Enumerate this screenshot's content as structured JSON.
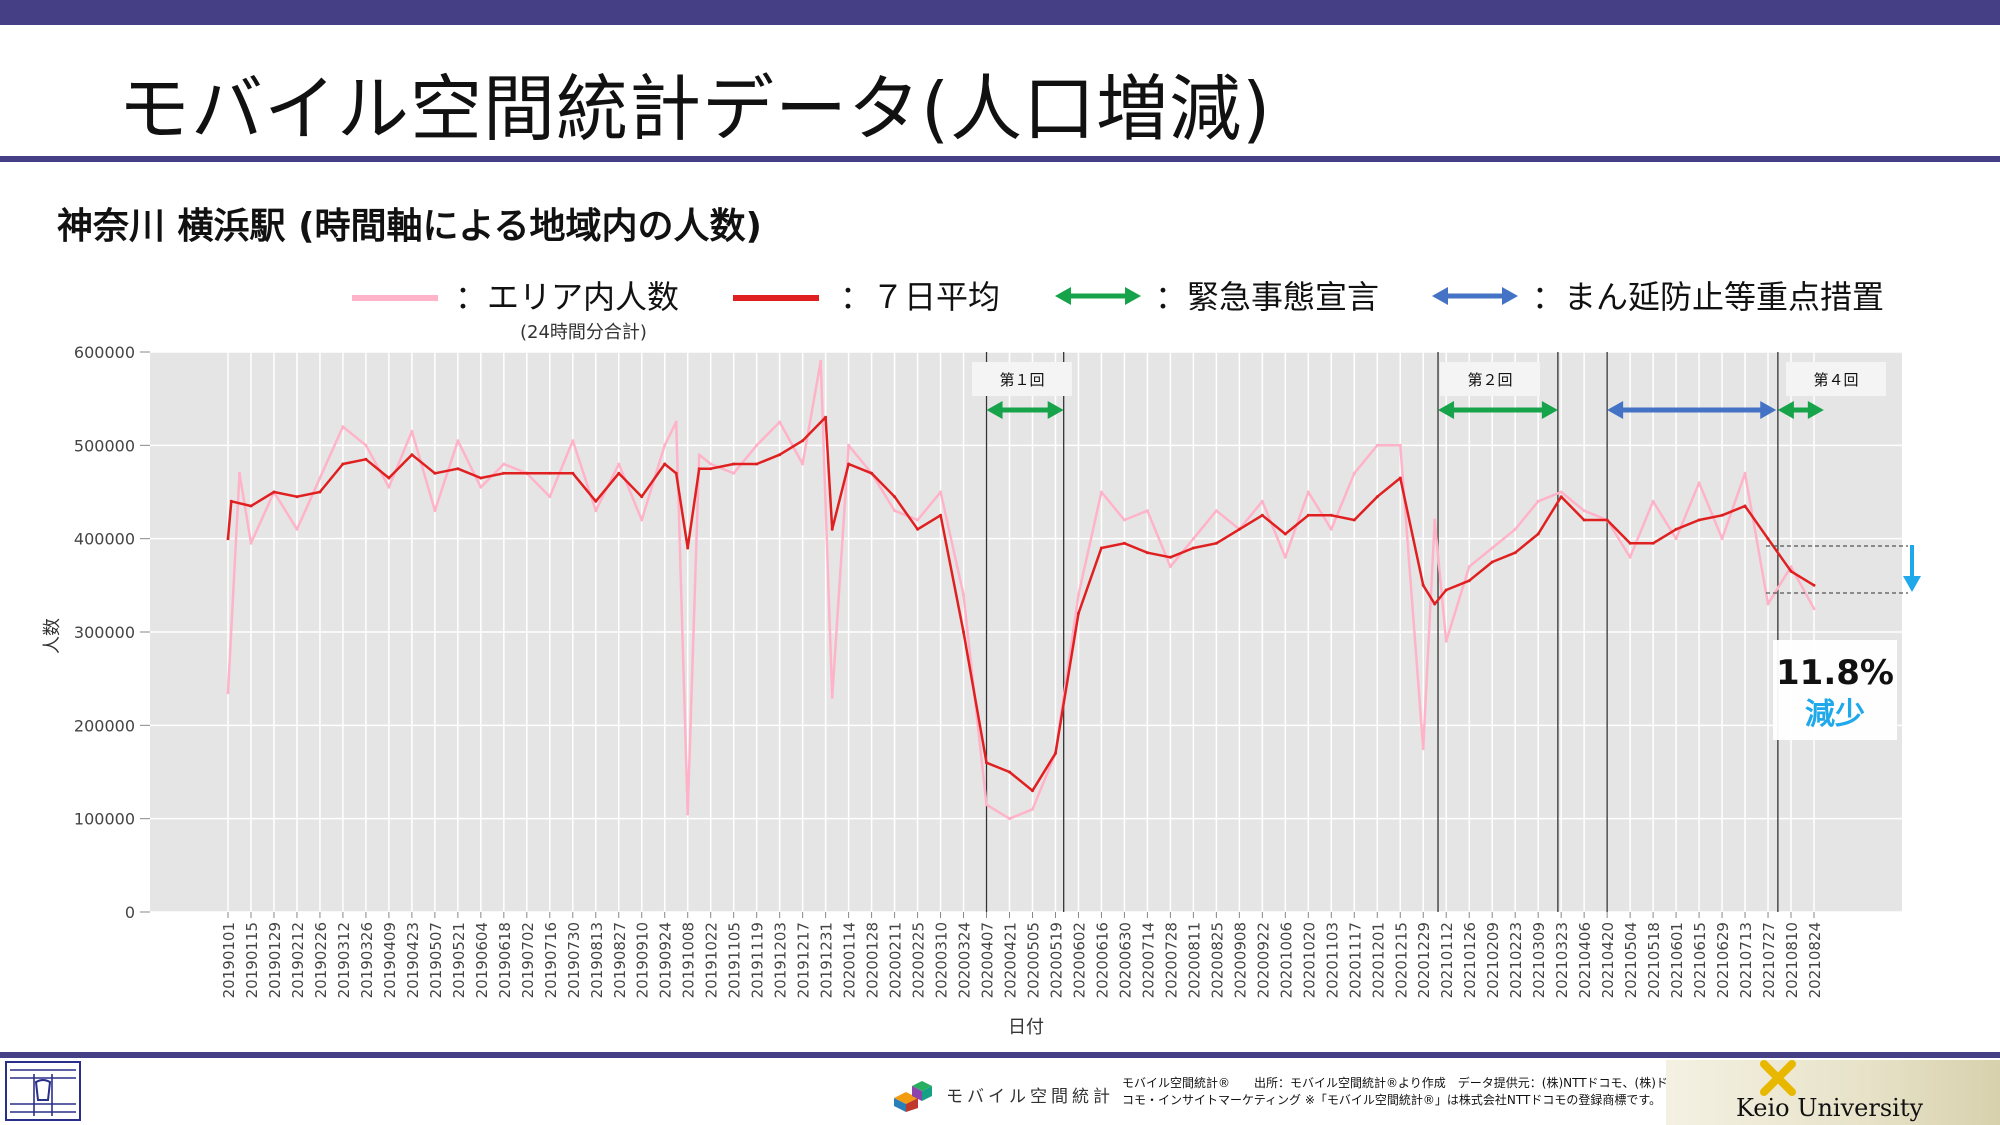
{
  "slide": {
    "title": "モバイル空間統計データ(人口増減)",
    "subtitle": "神奈川 横浜駅 (時間軸による地域内の人数)"
  },
  "legend": {
    "area": "：エリア内人数",
    "area_note": "(24時間分合計)",
    "avg7": "：７日平均",
    "emergency": "：緊急事態宣言",
    "priority": "：まん延防止等重点措置"
  },
  "colors": {
    "accent_bar": "#453f86",
    "area_line": "#ffb3c8",
    "avg_line": "#e02020",
    "emergency_arrow": "#16a34a",
    "priority_arrow": "#4472c4",
    "decrease_arrow": "#1fa8ea",
    "plot_bg": "#e5e5e5"
  },
  "annotations": {
    "round1": "第１回",
    "round2": "第２回",
    "round4": "第４回",
    "decrease_pct": "11.8%",
    "decrease_label": "減少"
  },
  "footer": {
    "brand": "モバイル空間統計",
    "line1": "モバイル空間統計®　　出所：モバイル空間統計®より作成　データ提供元：(株)NTTドコモ、(株)ド",
    "line2": "コモ・インサイトマーケティング ※「モバイル空間統計®」は株式会社NTTドコモの登録商標です。",
    "university": "Keio University"
  },
  "chart_data": {
    "type": "line",
    "xlabel": "日付",
    "ylabel": "人数",
    "ylim": [
      0,
      600000
    ],
    "yticks": [
      "0",
      "100000",
      "200000",
      "300000",
      "400000",
      "500000",
      "600000"
    ],
    "xticks": [
      "20190101",
      "20190115",
      "20190129",
      "20190212",
      "20190226",
      "20190312",
      "20190326",
      "20190409",
      "20190423",
      "20190507",
      "20190521",
      "20190604",
      "20190618",
      "20190702",
      "20190716",
      "20190730",
      "20190813",
      "20190827",
      "20190910",
      "20190924",
      "20191008",
      "20191022",
      "20191105",
      "20191119",
      "20191203",
      "20191217",
      "20191231",
      "20200114",
      "20200128",
      "20200211",
      "20200225",
      "20200310",
      "20200324",
      "20200407",
      "20200421",
      "20200505",
      "20200519",
      "20200602",
      "20200616",
      "20200630",
      "20200714",
      "20200728",
      "20200811",
      "20200825",
      "20200908",
      "20200922",
      "20201006",
      "20201020",
      "20201103",
      "20201117",
      "20201201",
      "20201215",
      "20201229",
      "20210112",
      "20210126",
      "20210209",
      "20210223",
      "20210309",
      "20210323",
      "20210406",
      "20210420",
      "20210504",
      "20210518",
      "20210601",
      "20210615",
      "20210629",
      "20210713",
      "20210727",
      "20210810",
      "20210824"
    ],
    "grid": true,
    "series": [
      {
        "name": "エリア内人数",
        "x": [
          "20190101",
          "20190108",
          "20190115",
          "20190129",
          "20190212",
          "20190226",
          "20190312",
          "20190326",
          "20190409",
          "20190423",
          "20190507",
          "20190521",
          "20190604",
          "20190618",
          "20190702",
          "20190716",
          "20190730",
          "20190813",
          "20190827",
          "20190910",
          "20190924",
          "20191001",
          "20191008",
          "20191015",
          "20191022",
          "20191105",
          "20191119",
          "20191203",
          "20191217",
          "20191228",
          "20200104",
          "20200114",
          "20200128",
          "20200211",
          "20200225",
          "20200310",
          "20200324",
          "20200407",
          "20200421",
          "20200505",
          "20200519",
          "20200602",
          "20200616",
          "20200630",
          "20200714",
          "20200728",
          "20200811",
          "20200825",
          "20200908",
          "20200922",
          "20201006",
          "20201020",
          "20201103",
          "20201117",
          "20201201",
          "20201215",
          "20201229",
          "20210105",
          "20210112",
          "20210126",
          "20210209",
          "20210223",
          "20210309",
          "20210323",
          "20210406",
          "20210420",
          "20210504",
          "20210518",
          "20210601",
          "20210615",
          "20210629",
          "20210713",
          "20210727",
          "20210810",
          "20210824"
        ],
        "y": [
          235000,
          470000,
          395000,
          450000,
          410000,
          465000,
          520000,
          500000,
          455000,
          515000,
          430000,
          505000,
          455000,
          480000,
          470000,
          445000,
          505000,
          430000,
          480000,
          420000,
          500000,
          525000,
          105000,
          490000,
          480000,
          470000,
          500000,
          525000,
          480000,
          590000,
          230000,
          500000,
          470000,
          430000,
          420000,
          450000,
          340000,
          115000,
          100000,
          110000,
          170000,
          340000,
          450000,
          420000,
          430000,
          370000,
          400000,
          430000,
          410000,
          440000,
          380000,
          450000,
          410000,
          470000,
          500000,
          500000,
          175000,
          420000,
          290000,
          370000,
          390000,
          410000,
          440000,
          450000,
          430000,
          420000,
          380000,
          440000,
          400000,
          460000,
          400000,
          470000,
          330000,
          370000,
          325000
        ]
      },
      {
        "name": "７日平均",
        "x": [
          "20190101",
          "20190103",
          "20190115",
          "20190129",
          "20190212",
          "20190226",
          "20190312",
          "20190326",
          "20190409",
          "20190423",
          "20190507",
          "20190521",
          "20190604",
          "20190618",
          "20190702",
          "20190716",
          "20190730",
          "20190813",
          "20190827",
          "20190910",
          "20190924",
          "20191001",
          "20191008",
          "20191015",
          "20191022",
          "20191105",
          "20191119",
          "20191203",
          "20191217",
          "20191231",
          "20200104",
          "20200114",
          "20200128",
          "20200211",
          "20200225",
          "20200310",
          "20200324",
          "20200407",
          "20200421",
          "20200505",
          "20200519",
          "20200602",
          "20200616",
          "20200630",
          "20200714",
          "20200728",
          "20200811",
          "20200825",
          "20200908",
          "20200922",
          "20201006",
          "20201020",
          "20201103",
          "20201117",
          "20201201",
          "20201215",
          "20201229",
          "20210105",
          "20210112",
          "20210126",
          "20210209",
          "20210223",
          "20210309",
          "20210323",
          "20210406",
          "20210420",
          "20210504",
          "20210518",
          "20210601",
          "20210615",
          "20210629",
          "20210713",
          "20210727",
          "20210810",
          "20210824"
        ],
        "y": [
          400000,
          440000,
          435000,
          450000,
          445000,
          450000,
          480000,
          485000,
          465000,
          490000,
          470000,
          475000,
          465000,
          470000,
          470000,
          470000,
          470000,
          440000,
          470000,
          445000,
          480000,
          470000,
          390000,
          475000,
          475000,
          480000,
          480000,
          490000,
          505000,
          530000,
          410000,
          480000,
          470000,
          445000,
          410000,
          425000,
          300000,
          160000,
          150000,
          130000,
          170000,
          320000,
          390000,
          395000,
          385000,
          380000,
          390000,
          395000,
          410000,
          425000,
          405000,
          425000,
          425000,
          420000,
          445000,
          465000,
          350000,
          330000,
          345000,
          355000,
          375000,
          385000,
          405000,
          445000,
          420000,
          420000,
          395000,
          395000,
          410000,
          420000,
          425000,
          435000,
          400000,
          365000,
          350000
        ]
      }
    ],
    "vlines": [
      "20200407",
      "20200524",
      "20210107",
      "20210321",
      "20210420",
      "20210802"
    ],
    "emergency_periods": [
      [
        "20200407",
        "20200524"
      ],
      [
        "20210107",
        "20210321"
      ],
      [
        "20210802",
        "20210830"
      ]
    ],
    "priority_periods": [
      [
        "20210420",
        "20210801"
      ]
    ]
  }
}
